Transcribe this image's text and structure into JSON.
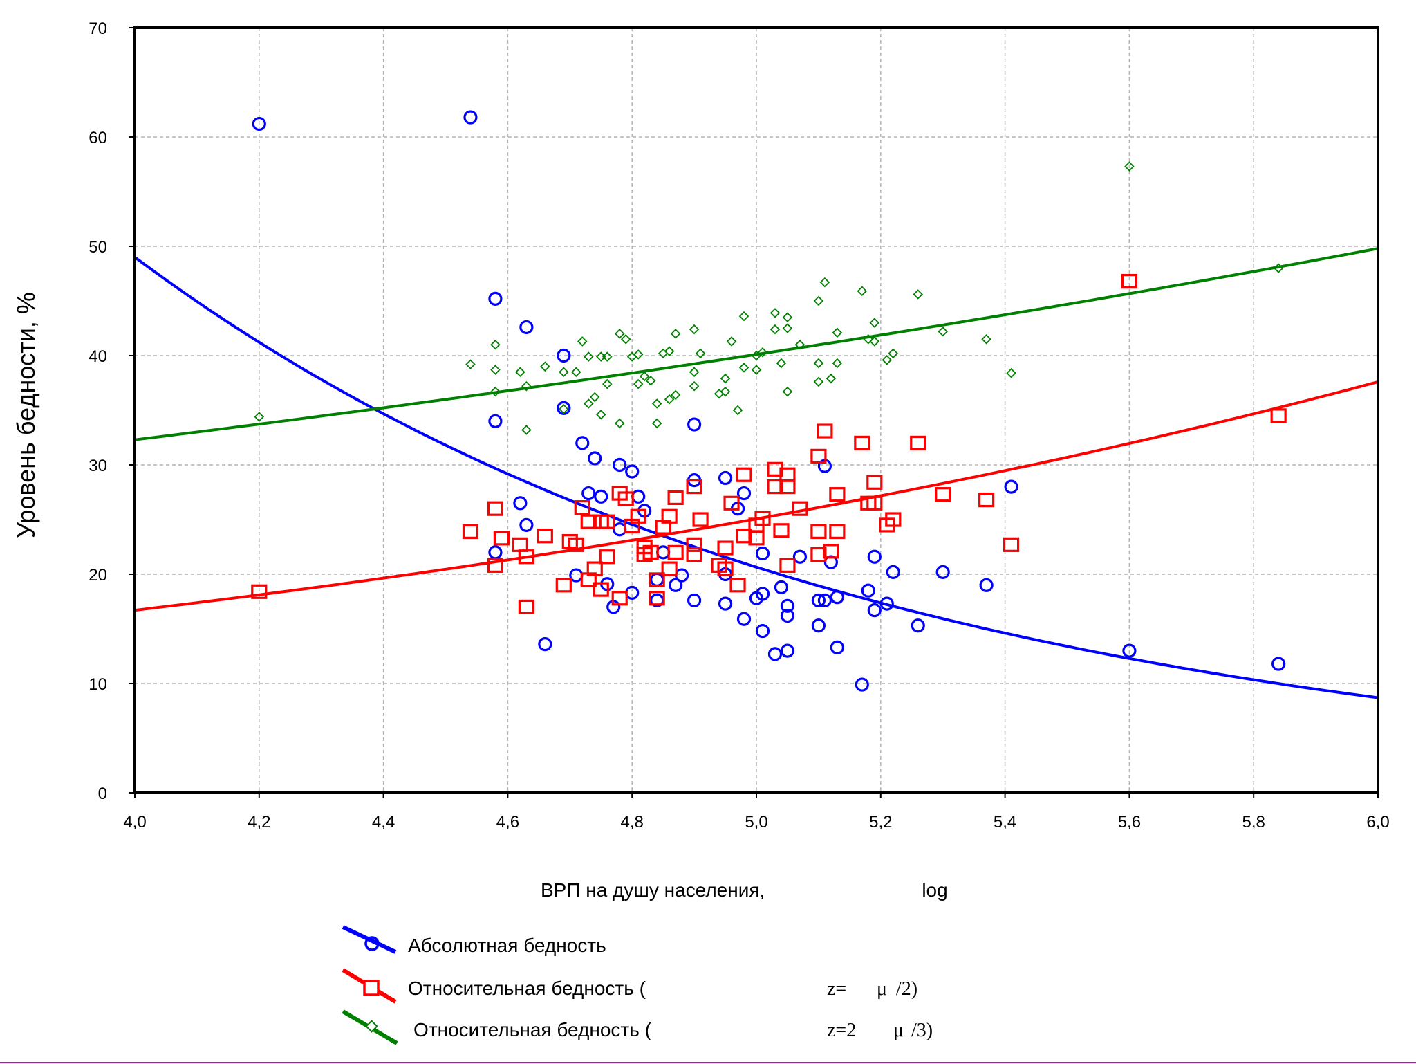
{
  "chart_data": {
    "type": "scatter",
    "title": "",
    "xlabel": "ВРП на душу населения,",
    "xlabel_suffix": "log",
    "ylabel": "Уровень бедности, %",
    "xlim": [
      4.0,
      6.0
    ],
    "ylim": [
      0,
      70
    ],
    "x_ticks": [
      "4,0",
      "4,2",
      "4,4",
      "4,6",
      "4,8",
      "5,0",
      "5,2",
      "5,4",
      "5,6",
      "5,8",
      "6,0"
    ],
    "y_ticks": [
      "0",
      "10",
      "20",
      "30",
      "40",
      "50",
      "60",
      "70"
    ],
    "grid": true,
    "legend_position": "bottom-center",
    "series": [
      {
        "name": "Абсолютная бедность",
        "marker": "circle",
        "color": "#0000ff",
        "trend": {
          "type": "exponential",
          "x": [
            4.0,
            6.0
          ],
          "y": [
            49.0,
            8.7
          ]
        },
        "points": [
          [
            4.2,
            61.2
          ],
          [
            4.54,
            61.8
          ],
          [
            4.58,
            45.2
          ],
          [
            4.63,
            42.6
          ],
          [
            4.69,
            40.0
          ],
          [
            4.58,
            34.0
          ],
          [
            4.69,
            35.2
          ],
          [
            4.9,
            33.7
          ],
          [
            4.72,
            32.0
          ],
          [
            4.74,
            30.6
          ],
          [
            4.62,
            26.5
          ],
          [
            4.63,
            24.5
          ],
          [
            4.58,
            22.0
          ],
          [
            4.66,
            13.6
          ],
          [
            4.71,
            19.9
          ],
          [
            4.73,
            27.4
          ],
          [
            4.75,
            27.1
          ],
          [
            4.76,
            19.1
          ],
          [
            4.77,
            17.0
          ],
          [
            4.78,
            24.1
          ],
          [
            4.78,
            30.0
          ],
          [
            4.8,
            29.4
          ],
          [
            4.81,
            27.1
          ],
          [
            4.8,
            18.3
          ],
          [
            4.82,
            25.8
          ],
          [
            4.84,
            17.6
          ],
          [
            4.84,
            19.5
          ],
          [
            4.85,
            22.0
          ],
          [
            4.87,
            19.0
          ],
          [
            4.88,
            19.9
          ],
          [
            4.9,
            28.6
          ],
          [
            4.9,
            17.6
          ],
          [
            4.95,
            28.8
          ],
          [
            4.95,
            20.0
          ],
          [
            4.95,
            17.3
          ],
          [
            4.97,
            26.0
          ],
          [
            4.98,
            27.4
          ],
          [
            4.98,
            15.9
          ],
          [
            5.0,
            17.8
          ],
          [
            5.01,
            18.2
          ],
          [
            5.01,
            14.8
          ],
          [
            5.01,
            21.9
          ],
          [
            5.03,
            12.7
          ],
          [
            5.04,
            18.8
          ],
          [
            5.05,
            17.1
          ],
          [
            5.05,
            16.2
          ],
          [
            5.05,
            13.0
          ],
          [
            5.07,
            21.6
          ],
          [
            5.1,
            17.6
          ],
          [
            5.1,
            15.3
          ],
          [
            5.11,
            17.6
          ],
          [
            5.11,
            29.9
          ],
          [
            5.12,
            21.1
          ],
          [
            5.13,
            17.9
          ],
          [
            5.13,
            13.3
          ],
          [
            5.17,
            9.9
          ],
          [
            5.18,
            18.5
          ],
          [
            5.19,
            21.6
          ],
          [
            5.19,
            16.7
          ],
          [
            5.21,
            17.3
          ],
          [
            5.22,
            20.2
          ],
          [
            5.26,
            15.3
          ],
          [
            5.3,
            20.2
          ],
          [
            5.37,
            19.0
          ],
          [
            5.41,
            28.0
          ],
          [
            5.6,
            13.0
          ],
          [
            5.84,
            11.8
          ]
        ]
      },
      {
        "name": "Относительная бедность (",
        "formula": [
          "z=",
          "μ",
          "/2)"
        ],
        "marker": "square",
        "color": "#ff0000",
        "trend": {
          "type": "exponential",
          "x": [
            4.0,
            6.0
          ],
          "y": [
            16.7,
            37.6
          ]
        },
        "points": [
          [
            4.2,
            18.4
          ],
          [
            4.54,
            23.9
          ],
          [
            4.58,
            26.0
          ],
          [
            4.58,
            20.8
          ],
          [
            4.59,
            23.3
          ],
          [
            4.62,
            22.7
          ],
          [
            4.63,
            21.6
          ],
          [
            4.63,
            17.0
          ],
          [
            4.66,
            23.5
          ],
          [
            4.69,
            19.0
          ],
          [
            4.7,
            23.0
          ],
          [
            4.71,
            22.7
          ],
          [
            4.72,
            26.1
          ],
          [
            4.73,
            24.8
          ],
          [
            4.73,
            19.5
          ],
          [
            4.74,
            20.5
          ],
          [
            4.75,
            24.8
          ],
          [
            4.75,
            18.6
          ],
          [
            4.76,
            21.6
          ],
          [
            4.76,
            24.8
          ],
          [
            4.78,
            27.4
          ],
          [
            4.78,
            17.8
          ],
          [
            4.79,
            26.9
          ],
          [
            4.8,
            24.4
          ],
          [
            4.81,
            25.3
          ],
          [
            4.82,
            21.8
          ],
          [
            4.82,
            22.5
          ],
          [
            4.83,
            22.0
          ],
          [
            4.84,
            17.8
          ],
          [
            4.84,
            19.5
          ],
          [
            4.85,
            24.3
          ],
          [
            4.86,
            25.3
          ],
          [
            4.86,
            20.5
          ],
          [
            4.87,
            27.0
          ],
          [
            4.87,
            22.0
          ],
          [
            4.9,
            28.0
          ],
          [
            4.9,
            22.7
          ],
          [
            4.9,
            21.8
          ],
          [
            4.91,
            25.0
          ],
          [
            4.94,
            20.8
          ],
          [
            4.95,
            22.4
          ],
          [
            4.95,
            20.5
          ],
          [
            4.96,
            26.5
          ],
          [
            4.97,
            19.0
          ],
          [
            4.98,
            23.5
          ],
          [
            4.98,
            29.1
          ],
          [
            5.0,
            24.5
          ],
          [
            5.0,
            23.3
          ],
          [
            5.01,
            25.1
          ],
          [
            5.03,
            28.0
          ],
          [
            5.03,
            29.6
          ],
          [
            5.04,
            24.0
          ],
          [
            5.05,
            28.0
          ],
          [
            5.05,
            29.1
          ],
          [
            5.05,
            20.8
          ],
          [
            5.07,
            26.0
          ],
          [
            5.1,
            30.8
          ],
          [
            5.1,
            23.9
          ],
          [
            5.1,
            21.8
          ],
          [
            5.11,
            33.1
          ],
          [
            5.12,
            22.1
          ],
          [
            5.13,
            27.3
          ],
          [
            5.13,
            23.9
          ],
          [
            5.17,
            32.0
          ],
          [
            5.18,
            26.5
          ],
          [
            5.19,
            28.4
          ],
          [
            5.19,
            26.5
          ],
          [
            5.21,
            24.5
          ],
          [
            5.22,
            25.0
          ],
          [
            5.26,
            32.0
          ],
          [
            5.3,
            27.3
          ],
          [
            5.37,
            26.8
          ],
          [
            5.41,
            22.7
          ],
          [
            5.6,
            46.8
          ],
          [
            5.84,
            34.5
          ]
        ]
      },
      {
        "name": "Относительная бедность (",
        "formula": [
          "z=2",
          "μ",
          "/3)"
        ],
        "marker": "diamond",
        "color": "#008000",
        "trend": {
          "type": "exponential",
          "x": [
            4.0,
            6.0
          ],
          "y": [
            32.3,
            49.8
          ]
        },
        "points": [
          [
            4.2,
            34.4
          ],
          [
            4.54,
            39.2
          ],
          [
            4.58,
            41.0
          ],
          [
            4.58,
            36.7
          ],
          [
            4.58,
            38.7
          ],
          [
            4.62,
            38.5
          ],
          [
            4.63,
            37.2
          ],
          [
            4.63,
            33.2
          ],
          [
            4.66,
            39.0
          ],
          [
            4.69,
            35.1
          ],
          [
            4.69,
            38.5
          ],
          [
            4.71,
            38.5
          ],
          [
            4.72,
            41.3
          ],
          [
            4.73,
            39.9
          ],
          [
            4.73,
            35.6
          ],
          [
            4.74,
            36.2
          ],
          [
            4.75,
            39.9
          ],
          [
            4.75,
            34.6
          ],
          [
            4.76,
            37.4
          ],
          [
            4.76,
            39.9
          ],
          [
            4.78,
            42.0
          ],
          [
            4.78,
            33.8
          ],
          [
            4.79,
            41.5
          ],
          [
            4.8,
            39.9
          ],
          [
            4.81,
            37.4
          ],
          [
            4.81,
            40.1
          ],
          [
            4.82,
            38.1
          ],
          [
            4.83,
            37.7
          ],
          [
            4.84,
            33.8
          ],
          [
            4.84,
            35.6
          ],
          [
            4.85,
            40.2
          ],
          [
            4.86,
            40.4
          ],
          [
            4.86,
            36.0
          ],
          [
            4.87,
            42.0
          ],
          [
            4.87,
            36.4
          ],
          [
            4.9,
            42.4
          ],
          [
            4.9,
            38.5
          ],
          [
            4.9,
            37.2
          ],
          [
            4.91,
            40.2
          ],
          [
            4.94,
            36.5
          ],
          [
            4.95,
            37.9
          ],
          [
            4.95,
            36.7
          ],
          [
            4.96,
            41.3
          ],
          [
            4.97,
            35.0
          ],
          [
            4.98,
            38.9
          ],
          [
            4.98,
            43.6
          ],
          [
            5.0,
            40.0
          ],
          [
            5.0,
            38.7
          ],
          [
            5.01,
            40.3
          ],
          [
            5.03,
            42.4
          ],
          [
            5.03,
            43.9
          ],
          [
            5.04,
            39.3
          ],
          [
            5.05,
            42.5
          ],
          [
            5.05,
            43.5
          ],
          [
            5.05,
            36.7
          ],
          [
            5.07,
            41.0
          ],
          [
            5.1,
            45.0
          ],
          [
            5.1,
            39.3
          ],
          [
            5.1,
            37.6
          ],
          [
            5.11,
            46.7
          ],
          [
            5.12,
            37.9
          ],
          [
            5.13,
            42.1
          ],
          [
            5.13,
            39.3
          ],
          [
            5.17,
            45.9
          ],
          [
            5.18,
            41.5
          ],
          [
            5.19,
            43.0
          ],
          [
            5.19,
            41.3
          ],
          [
            5.21,
            39.6
          ],
          [
            5.22,
            40.2
          ],
          [
            5.26,
            45.6
          ],
          [
            5.3,
            42.2
          ],
          [
            5.37,
            41.5
          ],
          [
            5.41,
            38.4
          ],
          [
            5.6,
            57.3
          ],
          [
            5.84,
            48.0
          ]
        ]
      }
    ]
  }
}
